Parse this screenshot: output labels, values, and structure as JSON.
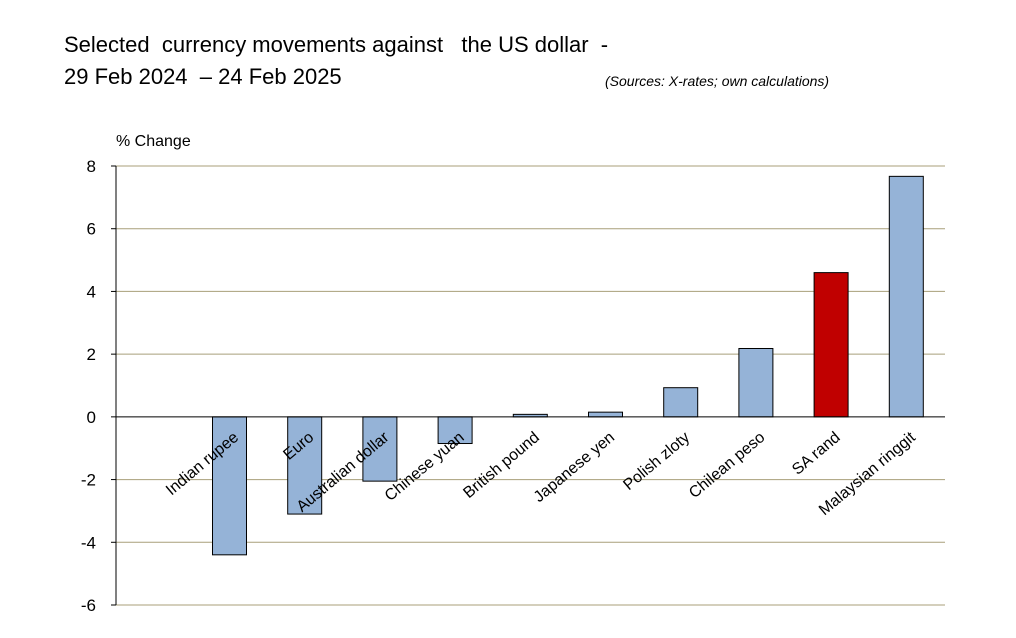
{
  "chart_data": {
    "type": "bar",
    "title_line1": "Selected  currency movements against   the US dollar  -",
    "title_line2": "29 Feb 2024  – 24 Feb 2025",
    "source": "(Sources: X-rates; own calculations)",
    "ylabel": "% Change",
    "ylim": [
      -6,
      8
    ],
    "yticks": [
      8,
      6,
      4,
      2,
      0,
      -2,
      -4,
      -6
    ],
    "grid": true,
    "categories": [
      "Indian rupee",
      "Euro",
      "Australian dollar",
      "Chinese yuan",
      "British pound",
      "Japanese yen",
      "Polish zloty",
      "Chilean peso",
      "SA rand",
      "Malaysian ringgit"
    ],
    "values": [
      -4.4,
      -3.1,
      -2.05,
      -0.85,
      0.08,
      0.15,
      0.93,
      2.18,
      4.6,
      7.67
    ],
    "colors": [
      "#95b3d7",
      "#95b3d7",
      "#95b3d7",
      "#95b3d7",
      "#95b3d7",
      "#95b3d7",
      "#95b3d7",
      "#95b3d7",
      "#c00000",
      "#95b3d7"
    ]
  }
}
